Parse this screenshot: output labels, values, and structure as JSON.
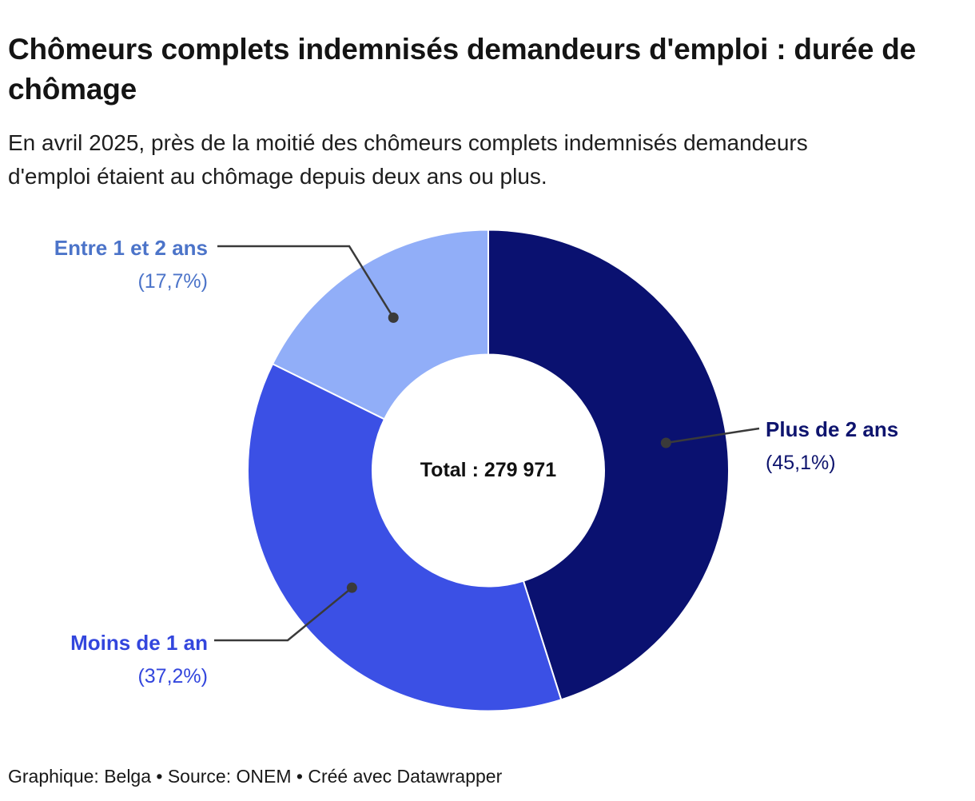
{
  "header": {
    "title": "Chômeurs complets indemnisés demandeurs d'emploi : durée de chômage",
    "subtitle": "En avril 2025, près de la moitié des chômeurs complets indemnisés demandeurs d'emploi étaient au chômage depuis deux ans ou plus."
  },
  "chart_data": {
    "type": "pie",
    "subtype": "donut",
    "title": "Chômeurs complets indemnisés demandeurs d'emploi : durée de chômage",
    "center_label": "Total : 279 971",
    "total_value": 279971,
    "start_angle_deg": 0,
    "direction": "clockwise",
    "legend_position": "outside-callout-labels",
    "connector_color": "#3a3a3a",
    "separator_color": "#ffffff",
    "slices": [
      {
        "label": "Plus de 2 ans",
        "value_pct": 45.1,
        "pct_label": "(45,1%)",
        "color": "#0a1170",
        "label_color": "#0e146e"
      },
      {
        "label": "Moins de 1 an",
        "value_pct": 37.2,
        "pct_label": "(37,2%)",
        "color": "#3b50e5",
        "label_color": "#3346dd"
      },
      {
        "label": "Entre 1 et 2 ans",
        "value_pct": 17.7,
        "pct_label": "(17,7%)",
        "color": "#91aef8",
        "label_color": "#4c74c9"
      }
    ]
  },
  "footer": {
    "text": "Graphique: Belga • Source: ONEM • Créé avec Datawrapper"
  }
}
